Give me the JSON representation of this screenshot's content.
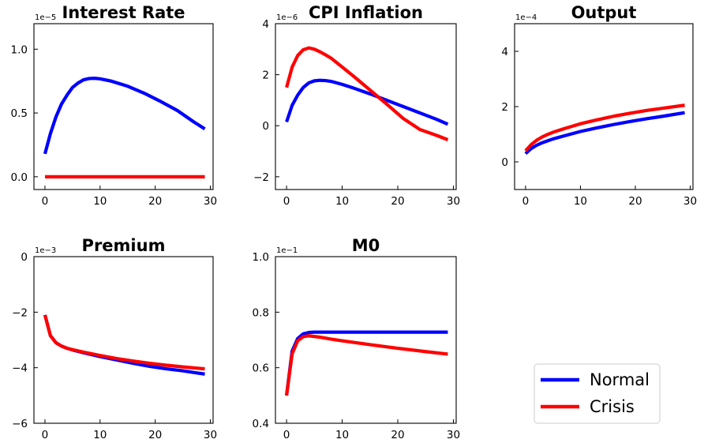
{
  "chart_data": {
    "type": "line",
    "legend": {
      "placement": "lower-right",
      "entries": [
        {
          "name": "Normal",
          "color": "#0000ff"
        },
        {
          "name": "Crisis",
          "color": "#ff0000"
        }
      ]
    },
    "panels": [
      {
        "id": "interest-rate",
        "title": "Interest Rate",
        "offset_label": "1e−5",
        "xlim": [
          -2,
          30.5
        ],
        "ylim": [
          -0.1,
          1.2
        ],
        "xticks": [
          0,
          10,
          20,
          30
        ],
        "xtick_labels": [
          "0",
          "10",
          "20",
          "30"
        ],
        "yticks": [
          0.0,
          0.5,
          1.0
        ],
        "ytick_labels": [
          "0.0",
          "0.5",
          "1.0"
        ],
        "series": [
          {
            "name": "Normal",
            "color": "#0000ff",
            "x": [
              0,
              1,
              2,
              3,
              4,
              5,
              6,
              7,
              8,
              9,
              10,
              12,
              15,
              18,
              21,
              24,
              27,
              29
            ],
            "y": [
              0.18,
              0.34,
              0.47,
              0.57,
              0.64,
              0.7,
              0.735,
              0.76,
              0.77,
              0.772,
              0.768,
              0.75,
              0.71,
              0.655,
              0.59,
              0.52,
              0.43,
              0.375
            ]
          },
          {
            "name": "Crisis",
            "color": "#ff0000",
            "x": [
              0,
              29
            ],
            "y": [
              0.0,
              0.0
            ]
          }
        ]
      },
      {
        "id": "cpi-inflation",
        "title": "CPI Inflation",
        "offset_label": "1e−6",
        "xlim": [
          -2,
          30.5
        ],
        "ylim": [
          -2.5,
          4.0
        ],
        "xticks": [
          0,
          10,
          20,
          30
        ],
        "xtick_labels": [
          "0",
          "10",
          "20",
          "30"
        ],
        "yticks": [
          -2,
          0,
          2,
          4
        ],
        "ytick_labels": [
          "−2",
          "0",
          "2",
          "4"
        ],
        "series": [
          {
            "name": "Normal",
            "color": "#0000ff",
            "x": [
              0,
              1,
              2,
              3,
              4,
              5,
              6,
              7,
              8,
              10,
              12,
              15,
              18,
              21,
              24,
              27,
              29
            ],
            "y": [
              0.15,
              0.8,
              1.2,
              1.5,
              1.68,
              1.76,
              1.78,
              1.77,
              1.74,
              1.62,
              1.48,
              1.25,
              1.0,
              0.75,
              0.5,
              0.25,
              0.06
            ]
          },
          {
            "name": "Crisis",
            "color": "#ff0000",
            "x": [
              0,
              1,
              2,
              3,
              4,
              5,
              6,
              7,
              8,
              10,
              12,
              15,
              18,
              21,
              24,
              27,
              29
            ],
            "y": [
              1.5,
              2.3,
              2.75,
              2.98,
              3.05,
              3.0,
              2.9,
              2.78,
              2.65,
              2.3,
              1.95,
              1.4,
              0.85,
              0.28,
              -0.15,
              -0.38,
              -0.55
            ]
          }
        ]
      },
      {
        "id": "output",
        "title": "Output",
        "offset_label": "1e−4",
        "xlim": [
          -2,
          30.5
        ],
        "ylim": [
          -1.0,
          5.0
        ],
        "xticks": [
          0,
          10,
          20,
          30
        ],
        "xtick_labels": [
          "0",
          "10",
          "20",
          "30"
        ],
        "yticks": [
          0,
          2,
          4
        ],
        "ytick_labels": [
          "0",
          "2",
          "4"
        ],
        "series": [
          {
            "name": "Normal",
            "color": "#0000ff",
            "x": [
              0,
              1,
              2,
              3,
              4,
              5,
              7,
              10,
              13,
              16,
              19,
              22,
              25,
              29
            ],
            "y": [
              0.3,
              0.48,
              0.6,
              0.69,
              0.76,
              0.83,
              0.94,
              1.1,
              1.23,
              1.35,
              1.46,
              1.56,
              1.65,
              1.78
            ]
          },
          {
            "name": "Crisis",
            "color": "#ff0000",
            "x": [
              0,
              1,
              2,
              3,
              4,
              5,
              7,
              10,
              13,
              16,
              19,
              22,
              25,
              29
            ],
            "y": [
              0.4,
              0.62,
              0.78,
              0.9,
              0.99,
              1.07,
              1.2,
              1.38,
              1.52,
              1.65,
              1.76,
              1.86,
              1.94,
              2.05
            ]
          }
        ]
      },
      {
        "id": "premium",
        "title": "Premium",
        "offset_label": "1e−3",
        "xlim": [
          -2,
          30.5
        ],
        "ylim": [
          -6.0,
          0.0
        ],
        "xticks": [
          0,
          10,
          20,
          30
        ],
        "xtick_labels": [
          "0",
          "10",
          "20",
          "30"
        ],
        "yticks": [
          -6,
          -4,
          -2,
          0
        ],
        "ytick_labels": [
          "−6",
          "−4",
          "−2",
          "0"
        ],
        "series": [
          {
            "name": "Normal",
            "color": "#0000ff",
            "x": [
              0,
              1,
              2,
              3,
              4,
              5,
              7,
              10,
              13,
              16,
              19,
              22,
              25,
              29
            ],
            "y": [
              -2.1,
              -2.85,
              -3.1,
              -3.22,
              -3.3,
              -3.36,
              -3.46,
              -3.6,
              -3.72,
              -3.84,
              -3.95,
              -4.04,
              -4.11,
              -4.23
            ]
          },
          {
            "name": "Crisis",
            "color": "#ff0000",
            "x": [
              0,
              1,
              2,
              3,
              4,
              5,
              7,
              10,
              13,
              16,
              19,
              22,
              25,
              29
            ],
            "y": [
              -2.1,
              -2.85,
              -3.1,
              -3.22,
              -3.3,
              -3.35,
              -3.44,
              -3.56,
              -3.67,
              -3.76,
              -3.84,
              -3.91,
              -3.97,
              -4.04
            ]
          }
        ]
      },
      {
        "id": "m0",
        "title": "M0",
        "offset_label": "1e−1",
        "xlim": [
          -2,
          30.5
        ],
        "ylim": [
          0.4,
          1.0
        ],
        "xticks": [
          0,
          10,
          20,
          30
        ],
        "xtick_labels": [
          "0",
          "10",
          "20",
          "30"
        ],
        "yticks": [
          0.4,
          0.6,
          0.8,
          1.0
        ],
        "ytick_labels": [
          "0.4",
          "0.6",
          "0.8",
          "1.0"
        ],
        "series": [
          {
            "name": "Normal",
            "color": "#0000ff",
            "x": [
              0,
              1,
              2,
              3,
              4,
              5,
              6,
              8,
              10,
              15,
              20,
              25,
              29
            ],
            "y": [
              0.5,
              0.66,
              0.705,
              0.722,
              0.727,
              0.728,
              0.728,
              0.728,
              0.728,
              0.728,
              0.728,
              0.728,
              0.728
            ]
          },
          {
            "name": "Crisis",
            "color": "#ff0000",
            "x": [
              0,
              1,
              2,
              3,
              4,
              6,
              8,
              10,
              15,
              20,
              25,
              29
            ],
            "y": [
              0.5,
              0.65,
              0.697,
              0.712,
              0.715,
              0.71,
              0.703,
              0.697,
              0.683,
              0.67,
              0.658,
              0.649
            ]
          }
        ]
      }
    ]
  }
}
